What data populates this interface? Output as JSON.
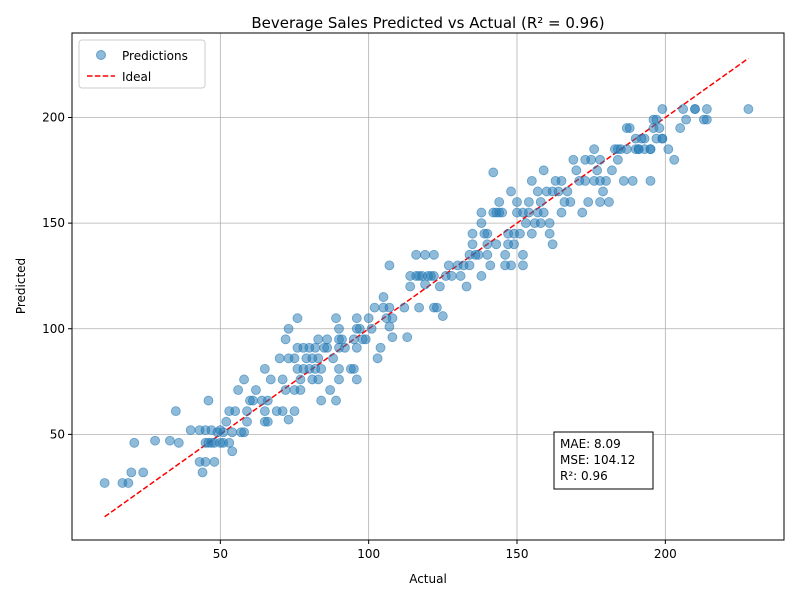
{
  "chart_data": {
    "type": "scatter",
    "title": "Beverage Sales Predicted vs Actual (R² = 0.96)",
    "xlabel": "Actual",
    "ylabel": "Predicted",
    "xlim": [
      0,
      240
    ],
    "ylim": [
      0,
      240
    ],
    "xticks": [
      50,
      100,
      150,
      200
    ],
    "yticks": [
      50,
      100,
      150,
      200
    ],
    "grid": true,
    "legend_position": "top-left",
    "series": [
      {
        "name": "Predictions",
        "color": "#1f77b4",
        "points": [
          [
            11,
            27
          ],
          [
            17,
            27
          ],
          [
            19,
            27
          ],
          [
            20,
            32
          ],
          [
            21,
            46
          ],
          [
            24,
            32
          ],
          [
            28,
            47
          ],
          [
            33,
            47
          ],
          [
            35,
            61
          ],
          [
            36,
            46
          ],
          [
            40,
            52
          ],
          [
            43,
            37
          ],
          [
            43,
            52
          ],
          [
            44,
            32
          ],
          [
            45,
            37
          ],
          [
            45,
            46
          ],
          [
            45,
            52
          ],
          [
            46,
            66
          ],
          [
            46,
            46
          ],
          [
            47,
            52
          ],
          [
            47,
            46
          ],
          [
            48,
            37
          ],
          [
            48,
            46
          ],
          [
            49,
            51
          ],
          [
            50,
            46
          ],
          [
            50,
            52
          ],
          [
            51,
            46
          ],
          [
            51,
            51
          ],
          [
            52,
            56
          ],
          [
            53,
            46
          ],
          [
            53,
            61
          ],
          [
            54,
            42
          ],
          [
            54,
            51
          ],
          [
            55,
            61
          ],
          [
            56,
            71
          ],
          [
            57,
            51
          ],
          [
            58,
            76
          ],
          [
            58,
            51
          ],
          [
            59,
            56
          ],
          [
            59,
            61
          ],
          [
            60,
            66
          ],
          [
            61,
            66
          ],
          [
            62,
            71
          ],
          [
            64,
            66
          ],
          [
            65,
            56
          ],
          [
            65,
            61
          ],
          [
            65,
            81
          ],
          [
            66,
            56
          ],
          [
            66,
            66
          ],
          [
            67,
            76
          ],
          [
            69,
            61
          ],
          [
            70,
            86
          ],
          [
            71,
            76
          ],
          [
            71,
            61
          ],
          [
            72,
            71
          ],
          [
            72,
            95
          ],
          [
            73,
            86
          ],
          [
            73,
            57
          ],
          [
            73,
            100
          ],
          [
            75,
            61
          ],
          [
            75,
            86
          ],
          [
            75,
            71
          ],
          [
            76,
            105
          ],
          [
            76,
            91
          ],
          [
            76,
            81
          ],
          [
            77,
            71
          ],
          [
            77,
            76
          ],
          [
            78,
            81
          ],
          [
            78,
            91
          ],
          [
            79,
            86
          ],
          [
            80,
            91
          ],
          [
            80,
            81
          ],
          [
            81,
            86
          ],
          [
            81,
            76
          ],
          [
            82,
            81
          ],
          [
            82,
            91
          ],
          [
            83,
            95
          ],
          [
            83,
            86
          ],
          [
            83,
            76
          ],
          [
            84,
            66
          ],
          [
            84,
            81
          ],
          [
            85,
            91
          ],
          [
            86,
            95
          ],
          [
            86,
            91
          ],
          [
            87,
            71
          ],
          [
            88,
            86
          ],
          [
            89,
            105
          ],
          [
            89,
            66
          ],
          [
            90,
            81
          ],
          [
            90,
            76
          ],
          [
            90,
            91
          ],
          [
            90,
            95
          ],
          [
            90,
            100
          ],
          [
            91,
            95
          ],
          [
            92,
            91
          ],
          [
            94,
            81
          ],
          [
            95,
            95
          ],
          [
            95,
            81
          ],
          [
            96,
            91
          ],
          [
            96,
            100
          ],
          [
            96,
            76
          ],
          [
            96,
            105
          ],
          [
            97,
            100
          ],
          [
            98,
            95
          ],
          [
            99,
            95
          ],
          [
            100,
            105
          ],
          [
            101,
            100
          ],
          [
            102,
            110
          ],
          [
            103,
            86
          ],
          [
            104,
            91
          ],
          [
            105,
            110
          ],
          [
            105,
            115
          ],
          [
            106,
            105
          ],
          [
            107,
            101
          ],
          [
            107,
            110
          ],
          [
            107,
            130
          ],
          [
            108,
            105
          ],
          [
            108,
            96
          ],
          [
            112,
            110
          ],
          [
            113,
            96
          ],
          [
            114,
            125
          ],
          [
            114,
            120
          ],
          [
            116,
            125
          ],
          [
            116,
            135
          ],
          [
            117,
            110
          ],
          [
            117,
            125
          ],
          [
            118,
            125
          ],
          [
            119,
            135
          ],
          [
            119,
            121
          ],
          [
            120,
            125
          ],
          [
            121,
            125
          ],
          [
            122,
            125
          ],
          [
            122,
            135
          ],
          [
            122,
            110
          ],
          [
            123,
            110
          ],
          [
            124,
            120
          ],
          [
            125,
            106
          ],
          [
            126,
            125
          ],
          [
            127,
            130
          ],
          [
            128,
            125
          ],
          [
            130,
            130
          ],
          [
            131,
            125
          ],
          [
            132,
            130
          ],
          [
            133,
            120
          ],
          [
            134,
            130
          ],
          [
            134,
            135
          ],
          [
            135,
            145
          ],
          [
            135,
            140
          ],
          [
            136,
            135
          ],
          [
            137,
            135
          ],
          [
            138,
            150
          ],
          [
            138,
            155
          ],
          [
            138,
            125
          ],
          [
            139,
            145
          ],
          [
            140,
            140
          ],
          [
            140,
            145
          ],
          [
            140,
            135
          ],
          [
            141,
            130
          ],
          [
            142,
            155
          ],
          [
            142,
            174
          ],
          [
            143,
            155
          ],
          [
            143,
            140
          ],
          [
            144,
            160
          ],
          [
            144,
            155
          ],
          [
            145,
            155
          ],
          [
            146,
            135
          ],
          [
            146,
            130
          ],
          [
            147,
            145
          ],
          [
            147,
            140
          ],
          [
            148,
            130
          ],
          [
            148,
            165
          ],
          [
            149,
            140
          ],
          [
            149,
            145
          ],
          [
            150,
            160
          ],
          [
            150,
            155
          ],
          [
            151,
            145
          ],
          [
            152,
            130
          ],
          [
            152,
            135
          ],
          [
            152,
            155
          ],
          [
            153,
            150
          ],
          [
            154,
            155
          ],
          [
            154,
            160
          ],
          [
            155,
            170
          ],
          [
            155,
            145
          ],
          [
            156,
            150
          ],
          [
            157,
            165
          ],
          [
            157,
            155
          ],
          [
            158,
            150
          ],
          [
            158,
            160
          ],
          [
            159,
            175
          ],
          [
            159,
            155
          ],
          [
            160,
            165
          ],
          [
            161,
            150
          ],
          [
            161,
            145
          ],
          [
            162,
            140
          ],
          [
            162,
            165
          ],
          [
            163,
            170
          ],
          [
            164,
            165
          ],
          [
            165,
            170
          ],
          [
            165,
            155
          ],
          [
            166,
            160
          ],
          [
            167,
            165
          ],
          [
            168,
            160
          ],
          [
            169,
            180
          ],
          [
            170,
            175
          ],
          [
            171,
            170
          ],
          [
            172,
            155
          ],
          [
            173,
            180
          ],
          [
            173,
            170
          ],
          [
            174,
            160
          ],
          [
            175,
            180
          ],
          [
            176,
            185
          ],
          [
            176,
            170
          ],
          [
            177,
            175
          ],
          [
            178,
            180
          ],
          [
            178,
            160
          ],
          [
            178,
            170
          ],
          [
            179,
            165
          ],
          [
            180,
            170
          ],
          [
            181,
            160
          ],
          [
            182,
            175
          ],
          [
            183,
            185
          ],
          [
            184,
            180
          ],
          [
            184,
            185
          ],
          [
            185,
            185
          ],
          [
            186,
            170
          ],
          [
            187,
            195
          ],
          [
            187,
            185
          ],
          [
            188,
            195
          ],
          [
            189,
            170
          ],
          [
            190,
            190
          ],
          [
            190,
            185
          ],
          [
            191,
            185
          ],
          [
            191,
            185
          ],
          [
            192,
            190
          ],
          [
            193,
            185
          ],
          [
            193,
            190
          ],
          [
            195,
            185
          ],
          [
            195,
            185
          ],
          [
            195,
            170
          ],
          [
            196,
            195
          ],
          [
            196,
            199
          ],
          [
            197,
            190
          ],
          [
            197,
            199
          ],
          [
            198,
            195
          ],
          [
            199,
            204
          ],
          [
            199,
            190
          ],
          [
            199,
            190
          ],
          [
            201,
            185
          ],
          [
            203,
            180
          ],
          [
            205,
            195
          ],
          [
            206,
            204
          ],
          [
            207,
            199
          ],
          [
            210,
            204
          ],
          [
            210,
            204
          ],
          [
            213,
            199
          ],
          [
            214,
            199
          ],
          [
            214,
            204
          ],
          [
            228,
            204
          ]
        ]
      },
      {
        "name": "Ideal",
        "color": "#ff0000",
        "style": "dashed",
        "x": [
          11,
          228
        ],
        "y": [
          11,
          228
        ]
      }
    ],
    "annotation": {
      "lines": [
        "MAE: 8.09",
        "MSE: 104.12",
        "R²: 0.96"
      ],
      "position": "bottom-right"
    }
  }
}
